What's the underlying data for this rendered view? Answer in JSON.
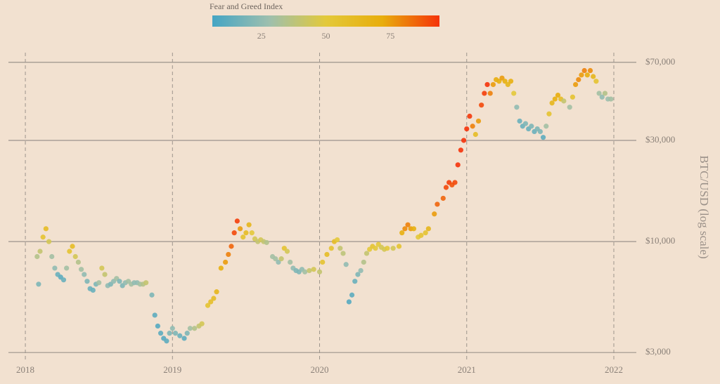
{
  "chart_data": {
    "type": "scatter",
    "colorbar_title": "Fear and Greed Index",
    "colorbar_lim": [
      6,
      94
    ],
    "colorbar_ticks": [
      25,
      50,
      75
    ],
    "colormap": [
      "#45a5c4",
      "#9dbfae",
      "#e3c93a",
      "#e8ad0c",
      "#f5330a"
    ],
    "y_label": "BTC/USD (log scale)",
    "log_y": true,
    "grid": true,
    "xlim": [
      2017.885,
      2022.153
    ],
    "xticks": [
      2018,
      2019,
      2020,
      2021,
      2022
    ],
    "ylim": [
      2700,
      82000
    ],
    "yticks": [
      {
        "value": 3000,
        "label": "$3,000"
      },
      {
        "value": 10000,
        "label": "$10,000"
      },
      {
        "value": 30000,
        "label": "$30,000"
      },
      {
        "value": 70000,
        "label": "$70,000"
      }
    ],
    "x": [
      2018.08,
      2018.09,
      2018.1,
      2018.12,
      2018.14,
      2018.16,
      2018.18,
      2018.2,
      2018.22,
      2018.24,
      2018.26,
      2018.28,
      2018.3,
      2018.32,
      2018.34,
      2018.36,
      2018.38,
      2018.4,
      2018.42,
      2018.44,
      2018.46,
      2018.48,
      2018.5,
      2018.52,
      2018.54,
      2018.56,
      2018.58,
      2018.6,
      2018.62,
      2018.64,
      2018.66,
      2018.68,
      2018.7,
      2018.72,
      2018.74,
      2018.76,
      2018.78,
      2018.8,
      2018.82,
      2018.86,
      2018.88,
      2018.9,
      2018.92,
      2018.94,
      2018.96,
      2018.98,
      2019.0,
      2019.02,
      2019.05,
      2019.08,
      2019.1,
      2019.12,
      2019.15,
      2019.18,
      2019.2,
      2019.24,
      2019.26,
      2019.28,
      2019.3,
      2019.33,
      2019.36,
      2019.38,
      2019.4,
      2019.42,
      2019.44,
      2019.46,
      2019.48,
      2019.5,
      2019.52,
      2019.54,
      2019.56,
      2019.58,
      2019.6,
      2019.62,
      2019.64,
      2019.68,
      2019.7,
      2019.72,
      2019.74,
      2019.76,
      2019.78,
      2019.8,
      2019.82,
      2019.84,
      2019.86,
      2019.88,
      2019.9,
      2019.93,
      2019.96,
      2020.0,
      2020.02,
      2020.05,
      2020.08,
      2020.1,
      2020.12,
      2020.14,
      2020.16,
      2020.18,
      2020.2,
      2020.22,
      2020.24,
      2020.26,
      2020.28,
      2020.3,
      2020.32,
      2020.34,
      2020.36,
      2020.38,
      2020.4,
      2020.42,
      2020.44,
      2020.46,
      2020.5,
      2020.54,
      2020.56,
      2020.58,
      2020.6,
      2020.62,
      2020.64,
      2020.67,
      2020.69,
      2020.72,
      2020.74,
      2020.78,
      2020.8,
      2020.84,
      2020.86,
      2020.88,
      2020.9,
      2020.92,
      2020.94,
      2020.96,
      2020.98,
      2021.0,
      2021.02,
      2021.04,
      2021.06,
      2021.08,
      2021.1,
      2021.12,
      2021.14,
      2021.16,
      2021.18,
      2021.2,
      2021.22,
      2021.24,
      2021.26,
      2021.28,
      2021.3,
      2021.32,
      2021.34,
      2021.36,
      2021.38,
      2021.4,
      2021.42,
      2021.44,
      2021.46,
      2021.48,
      2021.5,
      2021.52,
      2021.54,
      2021.56,
      2021.58,
      2021.6,
      2021.62,
      2021.64,
      2021.66,
      2021.7,
      2021.72,
      2021.74,
      2021.76,
      2021.78,
      2021.8,
      2021.82,
      2021.84,
      2021.86,
      2021.88,
      2021.9,
      2021.92,
      2021.94,
      2021.96,
      2021.98
    ],
    "values": [
      8500,
      6300,
      9000,
      10500,
      11500,
      10000,
      8500,
      7500,
      7000,
      6800,
      6600,
      7500,
      9000,
      9500,
      8500,
      8000,
      7400,
      7000,
      6500,
      6000,
      5900,
      6300,
      6400,
      7500,
      7000,
      6200,
      6300,
      6500,
      6700,
      6500,
      6200,
      6400,
      6500,
      6300,
      6400,
      6400,
      6300,
      6300,
      6400,
      5600,
      4500,
      4000,
      3700,
      3500,
      3400,
      3700,
      3900,
      3700,
      3600,
      3500,
      3700,
      3900,
      3900,
      4000,
      4100,
      5000,
      5200,
      5400,
      5800,
      7500,
      8000,
      8700,
      9500,
      11000,
      12500,
      11500,
      10500,
      11000,
      12000,
      11000,
      10300,
      10000,
      10200,
      10000,
      9900,
      8500,
      8300,
      8000,
      8300,
      9300,
      9000,
      8000,
      7500,
      7300,
      7200,
      7400,
      7200,
      7300,
      7400,
      7200,
      8000,
      8700,
      9300,
      10000,
      10200,
      9300,
      8800,
      7800,
      5200,
      5600,
      6500,
      7000,
      7300,
      8000,
      8800,
      9200,
      9500,
      9300,
      9700,
      9400,
      9200,
      9300,
      9300,
      9500,
      11000,
      11500,
      12000,
      11500,
      11500,
      10500,
      10700,
      11000,
      11500,
      13500,
      15000,
      16000,
      18000,
      19000,
      18500,
      19000,
      23000,
      27000,
      30000,
      34000,
      39000,
      35000,
      32000,
      37000,
      44000,
      50000,
      55000,
      50000,
      55000,
      58000,
      57000,
      59000,
      57000,
      55000,
      57000,
      50000,
      43000,
      37000,
      35000,
      36000,
      34000,
      35000,
      33000,
      34000,
      33000,
      31000,
      35000,
      40000,
      45000,
      47000,
      49000,
      47000,
      46000,
      43000,
      48000,
      55000,
      58000,
      61000,
      64000,
      61000,
      64000,
      60000,
      57000,
      50000,
      48000,
      50000,
      47000,
      47000
    ],
    "color_values": [
      35,
      20,
      40,
      55,
      60,
      45,
      30,
      25,
      15,
      12,
      15,
      30,
      55,
      60,
      45,
      35,
      30,
      25,
      20,
      15,
      15,
      20,
      30,
      45,
      40,
      25,
      20,
      25,
      30,
      20,
      20,
      25,
      30,
      30,
      25,
      25,
      30,
      35,
      40,
      20,
      12,
      10,
      12,
      10,
      12,
      20,
      25,
      20,
      15,
      12,
      20,
      30,
      35,
      40,
      45,
      55,
      58,
      60,
      65,
      70,
      75,
      80,
      85,
      90,
      92,
      75,
      55,
      60,
      65,
      50,
      45,
      40,
      45,
      40,
      35,
      30,
      30,
      25,
      40,
      55,
      45,
      30,
      25,
      20,
      20,
      25,
      30,
      40,
      45,
      40,
      55,
      60,
      55,
      60,
      50,
      40,
      38,
      25,
      10,
      12,
      15,
      20,
      25,
      35,
      40,
      50,
      55,
      50,
      50,
      45,
      45,
      50,
      45,
      55,
      70,
      78,
      80,
      75,
      70,
      50,
      55,
      55,
      65,
      75,
      85,
      85,
      90,
      92,
      88,
      90,
      94,
      94,
      94,
      94,
      93,
      80,
      60,
      75,
      90,
      92,
      94,
      80,
      75,
      72,
      70,
      75,
      70,
      65,
      70,
      50,
      25,
      15,
      15,
      20,
      15,
      20,
      15,
      20,
      20,
      12,
      30,
      55,
      65,
      70,
      72,
      60,
      40,
      30,
      55,
      75,
      78,
      75,
      80,
      72,
      78,
      65,
      55,
      30,
      25,
      35,
      28,
      30
    ]
  }
}
